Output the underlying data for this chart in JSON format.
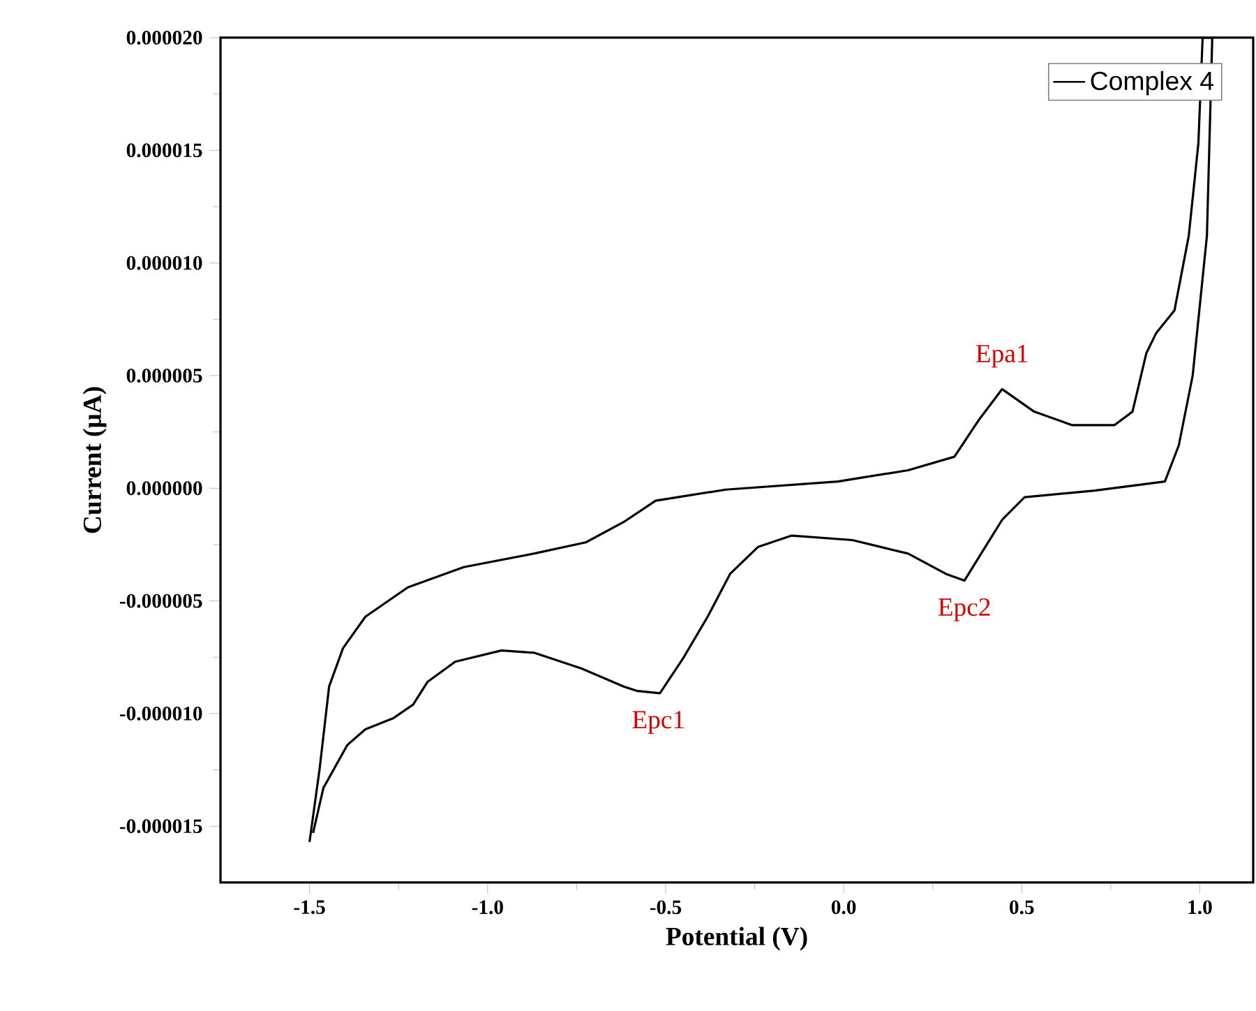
{
  "chart_data": {
    "type": "line",
    "xlabel": "Potential (V)",
    "ylabel": "Current (μA)",
    "xlim": [
      -1.75,
      1.15
    ],
    "ylim": [
      -1.75e-05,
      2e-05
    ],
    "xticks": [
      {
        "value": -1.5,
        "label": "-1.5"
      },
      {
        "value": -1.0,
        "label": "-1.0"
      },
      {
        "value": -0.5,
        "label": "-0.5"
      },
      {
        "value": 0.0,
        "label": "0.0"
      },
      {
        "value": 0.5,
        "label": "0.5"
      },
      {
        "value": 1.0,
        "label": "1.0"
      }
    ],
    "yticks": [
      {
        "value": -1.5e-05,
        "label": "-0.000015"
      },
      {
        "value": -1e-05,
        "label": "-0.000010"
      },
      {
        "value": -5e-06,
        "label": "-0.000005"
      },
      {
        "value": 0,
        "label": "0.000000"
      },
      {
        "value": 5e-06,
        "label": "0.000005"
      },
      {
        "value": 1e-05,
        "label": "0.000010"
      },
      {
        "value": 1.5e-05,
        "label": "0.000015"
      },
      {
        "value": 2e-05,
        "label": "0.000020"
      }
    ],
    "legend": "top right",
    "marker": "none",
    "line_style": "solid",
    "series": [
      {
        "name": "Complex 4",
        "color": "#000000",
        "x": [
          -1.5,
          -1.472,
          -1.445,
          -1.406,
          -1.343,
          -1.224,
          -1.067,
          -0.87,
          -0.724,
          -0.618,
          -0.528,
          -0.331,
          -0.016,
          0.181,
          0.311,
          0.378,
          0.445,
          0.535,
          0.642,
          0.76,
          0.811,
          0.85,
          0.878,
          0.929,
          0.969,
          0.996,
          1.008,
          1.035,
          1.02,
          0.98,
          0.941,
          0.902,
          0.705,
          0.508,
          0.445,
          0.39,
          0.339,
          0.287,
          0.181,
          0.024,
          -0.146,
          -0.24,
          -0.319,
          -0.382,
          -0.449,
          -0.516,
          -0.579,
          -0.618,
          -0.736,
          -0.87,
          -0.961,
          -1.091,
          -1.169,
          -1.209,
          -1.264,
          -1.343,
          -1.394,
          -1.461,
          -1.49
        ],
        "values": [
          -1.57e-05,
          -1.25e-05,
          -8.8e-06,
          -7.1e-06,
          -5.7e-06,
          -4.4e-06,
          -3.5e-06,
          -2.9e-06,
          -2.4e-06,
          -1.5e-06,
          -5.5e-07,
          -6e-08,
          3e-07,
          8e-07,
          1.4e-06,
          3e-06,
          4.4e-06,
          3.4e-06,
          2.8e-06,
          2.8e-06,
          3.4e-06,
          6e-06,
          6.9e-06,
          7.9e-06,
          1.12e-05,
          1.53e-05,
          2e-05,
          2e-05,
          1.12e-05,
          5e-06,
          1.9e-06,
          3e-07,
          -1e-07,
          -4e-07,
          -1.4e-06,
          -2.8e-06,
          -4.1e-06,
          -3.8e-06,
          -2.9e-06,
          -2.3e-06,
          -2.1e-06,
          -2.6e-06,
          -3.8e-06,
          -5.7e-06,
          -7.5e-06,
          -9.1e-06,
          -9e-06,
          -8.8e-06,
          -8e-06,
          -7.3e-06,
          -7.2e-06,
          -7.7e-06,
          -8.6e-06,
          -9.6e-06,
          -1.02e-05,
          -1.07e-05,
          -1.14e-05,
          -1.33e-05,
          -1.53e-05
        ]
      }
    ],
    "annotations": [
      {
        "text": "Epa1",
        "x": 0.445,
        "y": 4.4e-06
      },
      {
        "text": "Epc1",
        "x": -0.52,
        "y": -9.1e-06
      },
      {
        "text": "Epc2",
        "x": 0.339,
        "y": -4.1e-06
      }
    ]
  }
}
